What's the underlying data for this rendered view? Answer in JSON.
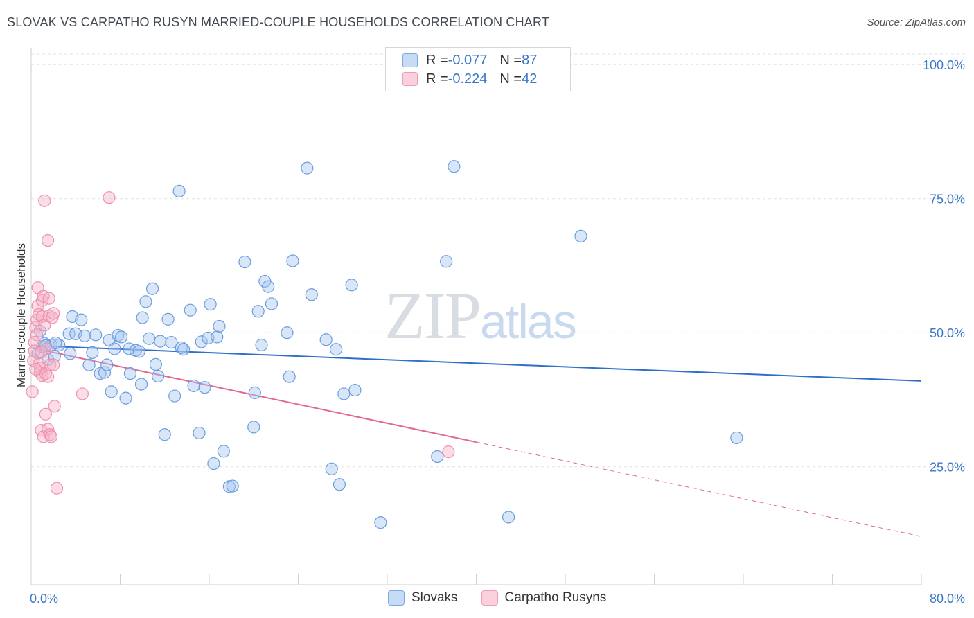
{
  "header": {
    "title": "SLOVAK VS CARPATHO RUSYN MARRIED-COUPLE HOUSEHOLDS CORRELATION CHART",
    "source": "Source: ZipAtlas.com"
  },
  "watermark": {
    "zip": "ZIP",
    "atlas": "atlas"
  },
  "legend": {
    "rows": [
      {
        "r_label": "R = ",
        "r_value": "-0.077",
        "n_label": "N = ",
        "n_value": "87",
        "color": "#a9c7ef"
      },
      {
        "r_label": "R = ",
        "r_value": "-0.224",
        "n_label": "N = ",
        "n_value": "42",
        "color": "#f5b3c7"
      }
    ]
  },
  "bottom_legend": {
    "slovaks": "Slovaks",
    "rusyns": "Carpatho Rusyns"
  },
  "chart_data": {
    "type": "scatter",
    "title": "SLOVAK VS CARPATHO RUSYN MARRIED-COUPLE HOUSEHOLDS CORRELATION CHART",
    "xlabel": "",
    "ylabel": "Married-couple Households",
    "xlim": [
      0,
      80
    ],
    "ylim": [
      3,
      103
    ],
    "x_tick_labels": [
      "0.0%",
      "80.0%"
    ],
    "y_ticks": [
      25,
      50,
      75,
      100
    ],
    "y_tick_labels": [
      "25.0%",
      "50.0%",
      "75.0%",
      "100.0%"
    ],
    "grid": true,
    "colors": {
      "slovaks": "#6a9de0",
      "slovaks_line": "#2e6fc8",
      "rusyns": "#f08fae",
      "rusyns_line": "#e06891"
    },
    "series": [
      {
        "name": "Slovaks",
        "R": -0.077,
        "N": 87,
        "trend": {
          "x0": 0,
          "y0": 47.6,
          "x1": 80,
          "y1": 41.0
        },
        "points": [
          [
            0.6,
            46.2
          ],
          [
            0.8,
            50.3
          ],
          [
            1.0,
            47.4
          ],
          [
            1.2,
            48.0
          ],
          [
            1.5,
            45.0
          ],
          [
            1.8,
            47.7
          ],
          [
            2.1,
            45.6
          ],
          [
            2.5,
            47.7
          ],
          [
            3.4,
            49.8
          ],
          [
            3.7,
            53.0
          ],
          [
            4.0,
            49.8
          ],
          [
            4.5,
            52.4
          ],
          [
            4.8,
            49.4
          ],
          [
            5.2,
            44.0
          ],
          [
            5.5,
            46.3
          ],
          [
            5.8,
            49.6
          ],
          [
            6.2,
            42.4
          ],
          [
            6.6,
            42.6
          ],
          [
            6.8,
            44.0
          ],
          [
            7.0,
            48.6
          ],
          [
            7.2,
            39.0
          ],
          [
            7.5,
            47.0
          ],
          [
            7.8,
            49.5
          ],
          [
            8.1,
            49.2
          ],
          [
            8.5,
            37.8
          ],
          [
            8.8,
            47.0
          ],
          [
            8.9,
            42.4
          ],
          [
            9.4,
            46.7
          ],
          [
            9.7,
            46.5
          ],
          [
            9.9,
            40.4
          ],
          [
            10.0,
            52.8
          ],
          [
            10.3,
            55.8
          ],
          [
            10.6,
            48.9
          ],
          [
            10.9,
            58.2
          ],
          [
            11.2,
            44.1
          ],
          [
            11.4,
            41.9
          ],
          [
            11.6,
            48.4
          ],
          [
            12.0,
            31.0
          ],
          [
            12.3,
            52.5
          ],
          [
            12.6,
            48.2
          ],
          [
            12.9,
            38.2
          ],
          [
            13.3,
            76.4
          ],
          [
            13.5,
            47.2
          ],
          [
            13.7,
            46.9
          ],
          [
            14.3,
            54.2
          ],
          [
            14.6,
            40.1
          ],
          [
            15.1,
            31.3
          ],
          [
            15.3,
            48.3
          ],
          [
            15.6,
            39.8
          ],
          [
            15.9,
            49.0
          ],
          [
            16.1,
            55.3
          ],
          [
            16.4,
            25.6
          ],
          [
            16.7,
            49.2
          ],
          [
            16.9,
            51.2
          ],
          [
            17.3,
            27.9
          ],
          [
            17.8,
            21.3
          ],
          [
            18.1,
            21.4
          ],
          [
            19.2,
            63.2
          ],
          [
            20.0,
            32.4
          ],
          [
            20.1,
            38.8
          ],
          [
            20.4,
            54.0
          ],
          [
            20.7,
            47.7
          ],
          [
            21.0,
            59.6
          ],
          [
            21.3,
            58.6
          ],
          [
            21.6,
            55.4
          ],
          [
            23.0,
            50.0
          ],
          [
            23.2,
            41.8
          ],
          [
            23.5,
            63.4
          ],
          [
            24.8,
            80.7
          ],
          [
            25.2,
            57.1
          ],
          [
            26.5,
            48.7
          ],
          [
            27.0,
            24.6
          ],
          [
            27.4,
            46.9
          ],
          [
            27.7,
            21.7
          ],
          [
            28.1,
            38.6
          ],
          [
            28.8,
            58.9
          ],
          [
            29.1,
            39.3
          ],
          [
            31.4,
            14.6
          ],
          [
            36.5,
            26.9
          ],
          [
            37.3,
            63.3
          ],
          [
            38.0,
            81.0
          ],
          [
            42.9,
            15.6
          ],
          [
            49.4,
            68.0
          ],
          [
            63.4,
            30.4
          ],
          [
            1.3,
            47.6
          ],
          [
            2.2,
            48.1
          ],
          [
            3.5,
            46.1
          ]
        ]
      },
      {
        "name": "Carpatho Rusyns",
        "R": -0.224,
        "N": 42,
        "trend": {
          "x0": 0,
          "y0": 47.2,
          "x1": 40,
          "y1": 29.6,
          "dash_x1": 80,
          "dash_y1": 12.0
        },
        "points": [
          [
            0.1,
            39.0
          ],
          [
            0.2,
            44.8
          ],
          [
            0.3,
            46.6
          ],
          [
            0.4,
            51.0
          ],
          [
            0.5,
            52.4
          ],
          [
            0.5,
            49.6
          ],
          [
            0.6,
            55.0
          ],
          [
            0.6,
            58.4
          ],
          [
            0.7,
            53.4
          ],
          [
            0.7,
            44.2
          ],
          [
            0.8,
            43.4
          ],
          [
            0.8,
            42.6
          ],
          [
            0.9,
            31.8
          ],
          [
            1.0,
            42.0
          ],
          [
            1.0,
            53.0
          ],
          [
            1.0,
            56.0
          ],
          [
            1.1,
            56.8
          ],
          [
            1.1,
            30.6
          ],
          [
            1.2,
            74.6
          ],
          [
            1.2,
            51.4
          ],
          [
            1.3,
            42.4
          ],
          [
            1.3,
            34.8
          ],
          [
            1.4,
            47.0
          ],
          [
            1.5,
            67.2
          ],
          [
            1.5,
            32.0
          ],
          [
            1.5,
            41.8
          ],
          [
            1.6,
            53.1
          ],
          [
            1.6,
            56.4
          ],
          [
            1.7,
            44.0
          ],
          [
            1.7,
            31.0
          ],
          [
            1.8,
            30.6
          ],
          [
            1.9,
            52.8
          ],
          [
            2.0,
            53.6
          ],
          [
            2.0,
            44.0
          ],
          [
            2.1,
            36.3
          ],
          [
            2.3,
            21.0
          ],
          [
            4.6,
            38.6
          ],
          [
            7.0,
            75.2
          ],
          [
            37.5,
            27.8
          ],
          [
            0.4,
            43.2
          ],
          [
            0.9,
            46.4
          ],
          [
            0.3,
            48.2
          ]
        ]
      }
    ]
  }
}
